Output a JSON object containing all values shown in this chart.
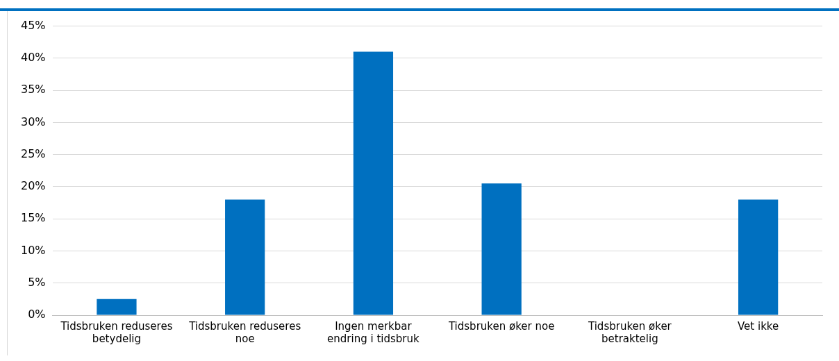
{
  "chart_data": {
    "type": "bar",
    "categories": [
      [
        "Tidsbruken reduseres",
        "betydelig"
      ],
      [
        "Tidsbruken reduseres",
        "noe"
      ],
      [
        "Ingen merkbar",
        "endring i tidsbruk"
      ],
      [
        "Tidsbruken øker noe"
      ],
      [
        "Tidsbruken øker",
        "betraktelig"
      ],
      [
        "Vet ikke"
      ]
    ],
    "values": [
      2.5,
      18,
      41,
      20.5,
      0,
      18
    ],
    "color": "#0070c0",
    "ylim": [
      0,
      45
    ],
    "yticks": [
      {
        "value": 0,
        "label": "0%"
      },
      {
        "value": 5,
        "label": "5%"
      },
      {
        "value": 10,
        "label": "10%"
      },
      {
        "value": 15,
        "label": "15%"
      },
      {
        "value": 20,
        "label": "20%"
      },
      {
        "value": 25,
        "label": "25%"
      },
      {
        "value": 30,
        "label": "30%"
      },
      {
        "value": 35,
        "label": "35%"
      },
      {
        "value": 40,
        "label": "40%"
      },
      {
        "value": 45,
        "label": "45%"
      }
    ],
    "grid": "y",
    "legend": false
  }
}
